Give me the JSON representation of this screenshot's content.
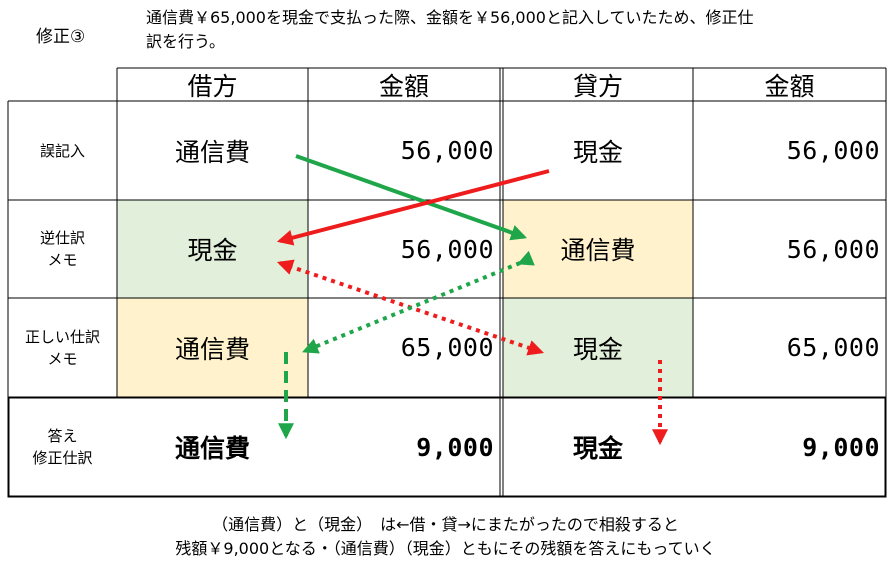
{
  "header": {
    "label": "修正③",
    "line1": "通信費￥65,000を現金で支払った際、金額を￥56,000と記入していたため、修正仕",
    "line2": "訳を行う。"
  },
  "table": {
    "columns": [
      "借方",
      "金額",
      "貸方",
      "金額"
    ],
    "rows": [
      {
        "label": "誤記入",
        "debit": "通信費",
        "debit_amount": "56,000",
        "credit": "現金",
        "credit_amount": "56,000"
      },
      {
        "label_line1": "逆仕訳",
        "label_line2": "メモ",
        "debit": "現金",
        "debit_amount": "56,000",
        "credit": "通信費",
        "credit_amount": "56,000"
      },
      {
        "label_line1": "正しい仕訳",
        "label_line2": "メモ",
        "debit": "通信費",
        "debit_amount": "65,000",
        "credit": "現金",
        "credit_amount": "65,000"
      },
      {
        "label_line1": "答え",
        "label_line2": "修正仕訳",
        "debit": "通信費",
        "debit_amount": "9,000",
        "credit": "現金",
        "credit_amount": "9,000"
      }
    ]
  },
  "colors": {
    "green_fill": "#e2efda",
    "peach_fill": "#fff2cc",
    "green_arrow": "#1fa64a",
    "red_arrow": "#ee1c1c"
  },
  "footer": {
    "line1": "（通信費）と（現金）　は←借・貸→にまたがったので相殺すると",
    "line2": "残額￥9,000となる・（通信費）（現金）ともにその残額を答えにもっていく"
  }
}
